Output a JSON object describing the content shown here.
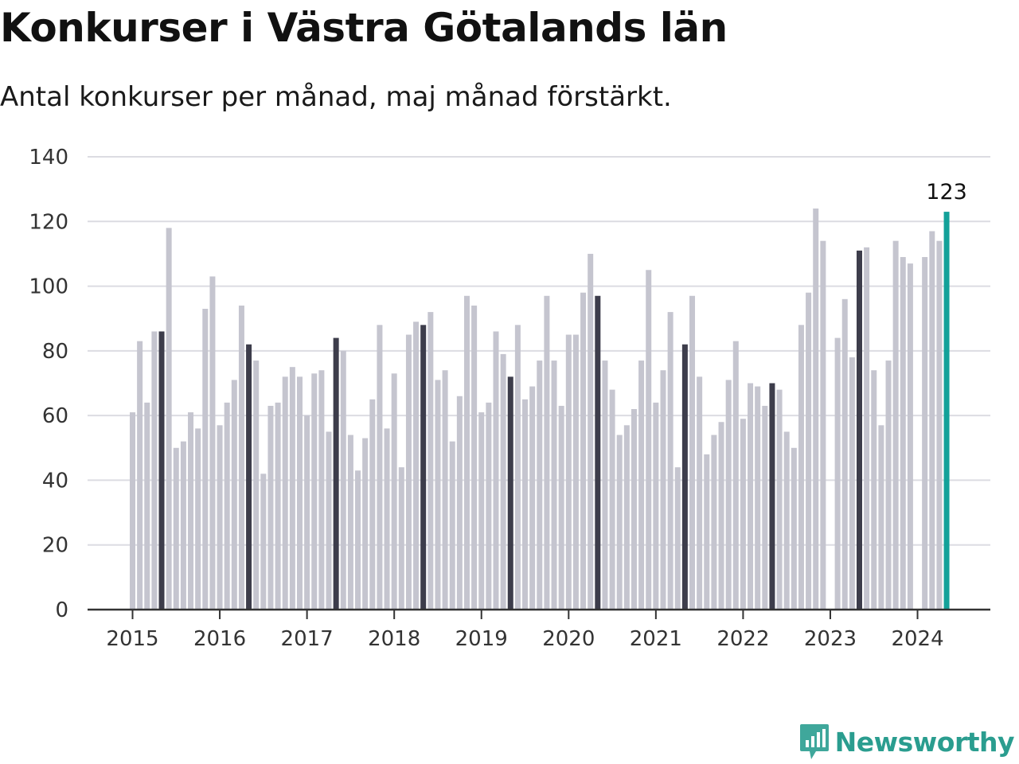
{
  "title": "Konkurser i Västra Götalands län",
  "subtitle": "Antal konkurser per månad, maj månad förstärkt.",
  "brand": "Newsworthy",
  "colors": {
    "bar_default": "#c5c5cf",
    "bar_highlight": "#3d3d4b",
    "bar_latest": "#13a199",
    "gridline": "#dcdce2",
    "axis": "#333333",
    "brand": "#2a9d8f"
  },
  "chart_data": {
    "type": "bar",
    "title": "Konkurser i Västra Götalands län",
    "subtitle": "Antal konkurser per månad, maj månad förstärkt.",
    "xlabel": "",
    "ylabel": "",
    "ylim": [
      0,
      140
    ],
    "yticks": [
      "0",
      "20",
      "40",
      "60",
      "80",
      "100",
      "120",
      "140"
    ],
    "xticks": [
      "2015",
      "2016",
      "2017",
      "2018",
      "2019",
      "2020",
      "2021",
      "2022",
      "2023",
      "2024"
    ],
    "grid": true,
    "highlight_month": "maj",
    "start": "2015-01",
    "latest_label": "123",
    "values": [
      61,
      83,
      64,
      86,
      86,
      118,
      50,
      52,
      61,
      56,
      93,
      103,
      57,
      64,
      71,
      94,
      82,
      77,
      42,
      63,
      64,
      72,
      75,
      72,
      60,
      73,
      74,
      55,
      84,
      80,
      54,
      43,
      53,
      65,
      88,
      56,
      73,
      44,
      85,
      89,
      88,
      92,
      71,
      74,
      52,
      66,
      97,
      94,
      61,
      64,
      86,
      79,
      72,
      88,
      65,
      69,
      77,
      97,
      77,
      63,
      85,
      85,
      98,
      110,
      97,
      77,
      68,
      54,
      57,
      62,
      77,
      105,
      64,
      74,
      92,
      44,
      82,
      97,
      72,
      48,
      54,
      58,
      71,
      83,
      59,
      70,
      69,
      63,
      70,
      68,
      55,
      50,
      88,
      98,
      124,
      114,
      null,
      84,
      96,
      78,
      111,
      112,
      74,
      57,
      77,
      114,
      109,
      107,
      null,
      109,
      117,
      114,
      123
    ]
  }
}
